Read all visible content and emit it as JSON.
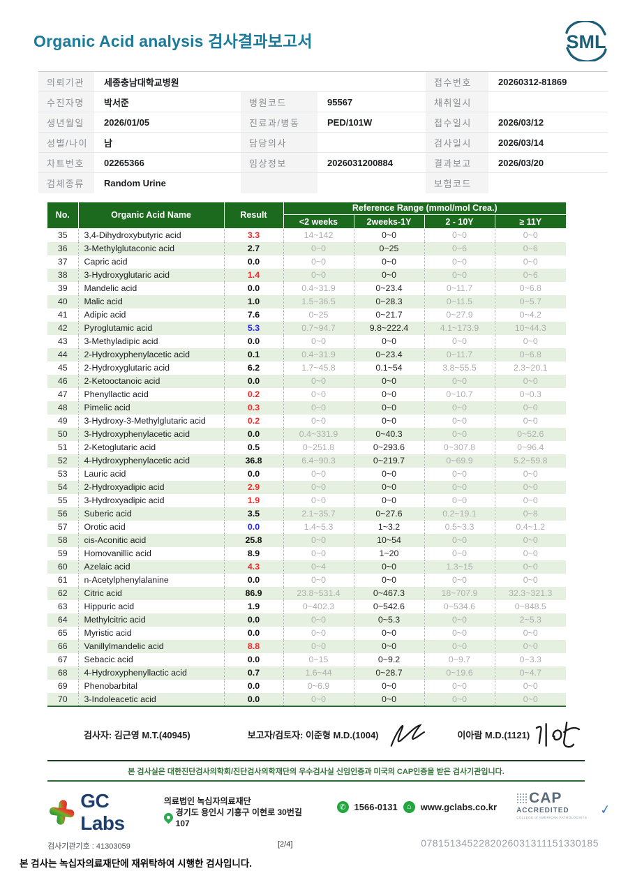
{
  "header": {
    "title": "Organic Acid analysis 검사결과보고서",
    "logo_text": "SML"
  },
  "patient_info": {
    "rows": [
      {
        "cells": [
          {
            "t": "label",
            "text": "의뢰기관",
            "span": 1
          },
          {
            "t": "value",
            "text": "세종충남대학교병원",
            "span": 3
          },
          {
            "t": "label",
            "text": "접수번호",
            "span": 1
          },
          {
            "t": "value",
            "text": "20260312-81869",
            "span": 1
          }
        ]
      },
      {
        "cells": [
          {
            "t": "label",
            "text": "수진자명",
            "span": 1
          },
          {
            "t": "value",
            "text": "박서준",
            "span": 1
          },
          {
            "t": "label",
            "text": "병원코드",
            "span": 1
          },
          {
            "t": "value",
            "text": "95567",
            "span": 1
          },
          {
            "t": "label",
            "text": "채취일시",
            "span": 1
          },
          {
            "t": "value",
            "text": "",
            "span": 1
          }
        ]
      },
      {
        "cells": [
          {
            "t": "label",
            "text": "생년월일",
            "span": 1
          },
          {
            "t": "value",
            "text": "2026/01/05",
            "span": 1
          },
          {
            "t": "label",
            "text": "진료과/병동",
            "span": 1
          },
          {
            "t": "value",
            "text": "PED/101W",
            "span": 1
          },
          {
            "t": "label",
            "text": "접수일시",
            "span": 1
          },
          {
            "t": "value",
            "text": "2026/03/12",
            "span": 1
          }
        ]
      },
      {
        "cells": [
          {
            "t": "label",
            "text": "성별/나이",
            "span": 1
          },
          {
            "t": "value",
            "text": "남",
            "span": 1
          },
          {
            "t": "label",
            "text": "담당의사",
            "span": 1
          },
          {
            "t": "value",
            "text": "",
            "span": 1
          },
          {
            "t": "label",
            "text": "검사일시",
            "span": 1
          },
          {
            "t": "value",
            "text": "2026/03/14",
            "span": 1
          }
        ]
      },
      {
        "cells": [
          {
            "t": "label",
            "text": "차트번호",
            "span": 1
          },
          {
            "t": "value",
            "text": "02265366",
            "span": 1
          },
          {
            "t": "label",
            "text": "임상정보",
            "span": 1
          },
          {
            "t": "value",
            "text": "2026031200884",
            "span": 1
          },
          {
            "t": "label",
            "text": "결과보고",
            "span": 1
          },
          {
            "t": "value",
            "text": "2026/03/20",
            "span": 1
          }
        ]
      },
      {
        "cells": [
          {
            "t": "label",
            "text": "검체종류",
            "span": 1
          },
          {
            "t": "value",
            "text": "Random Urine",
            "span": 1
          },
          {
            "t": "label",
            "text": "",
            "span": 1
          },
          {
            "t": "value",
            "text": "",
            "span": 1
          },
          {
            "t": "label",
            "text": "보험코드",
            "span": 1
          },
          {
            "t": "value",
            "text": "",
            "span": 1
          }
        ]
      }
    ]
  },
  "report_table": {
    "header": {
      "no": "No.",
      "name": "Organic Acid Name",
      "result": "Result",
      "ref_group": "Reference Range (mmol/mol Crea.)",
      "age_cols": [
        "<2 weeks",
        "2weeks-1Y",
        "2 - 10Y",
        "≥ 11Y"
      ],
      "active_age_col": 1
    },
    "rows": [
      {
        "no": "35",
        "name": "3,4-Dihydroxybutyric acid",
        "result": "3.3",
        "flag": "high",
        "refs": [
          "14~142",
          "0~0",
          "0~0",
          "0~0"
        ]
      },
      {
        "no": "36",
        "name": "3-Methylglutaconic acid",
        "result": "2.7",
        "flag": "normal",
        "refs": [
          "0~0",
          "0~25",
          "0~6",
          "0~6"
        ]
      },
      {
        "no": "37",
        "name": "Capric acid",
        "result": "0.0",
        "flag": "normal",
        "refs": [
          "0~0",
          "0~0",
          "0~0",
          "0~0"
        ]
      },
      {
        "no": "38",
        "name": "3-Hydroxyglutaric acid",
        "result": "1.4",
        "flag": "high",
        "refs": [
          "0~0",
          "0~0",
          "0~0",
          "0~6"
        ]
      },
      {
        "no": "39",
        "name": "Mandelic acid",
        "result": "0.0",
        "flag": "normal",
        "refs": [
          "0.4~31.9",
          "0~23.4",
          "0~11.7",
          "0~6.8"
        ]
      },
      {
        "no": "40",
        "name": "Malic acid",
        "result": "1.0",
        "flag": "normal",
        "refs": [
          "1.5~36.5",
          "0~28.3",
          "0~11.5",
          "0~5.7"
        ]
      },
      {
        "no": "41",
        "name": "Adipic acid",
        "result": "7.6",
        "flag": "normal",
        "refs": [
          "0~25",
          "0~21.7",
          "0~27.9",
          "0~4.2"
        ]
      },
      {
        "no": "42",
        "name": "Pyroglutamic acid",
        "result": "5.3",
        "flag": "low",
        "refs": [
          "0.7~94.7",
          "9.8~222.4",
          "4.1~173.9",
          "10~44.3"
        ]
      },
      {
        "no": "43",
        "name": "3-Methyladipic acid",
        "result": "0.0",
        "flag": "normal",
        "refs": [
          "0~0",
          "0~0",
          "0~0",
          "0~0"
        ]
      },
      {
        "no": "44",
        "name": "2-Hydroxyphenylacetic acid",
        "result": "0.1",
        "flag": "normal",
        "refs": [
          "0.4~31.9",
          "0~23.4",
          "0~11.7",
          "0~6.8"
        ]
      },
      {
        "no": "45",
        "name": "2-Hydroxyglutaric acid",
        "result": "6.2",
        "flag": "normal",
        "refs": [
          "1.7~45.8",
          "0.1~54",
          "3.8~55.5",
          "2.3~20.1"
        ]
      },
      {
        "no": "46",
        "name": "2-Ketooctanoic acid",
        "result": "0.0",
        "flag": "normal",
        "refs": [
          "0~0",
          "0~0",
          "0~0",
          "0~0"
        ]
      },
      {
        "no": "47",
        "name": "Phenyllactic acid",
        "result": "0.2",
        "flag": "high",
        "refs": [
          "0~0",
          "0~0",
          "0~10.7",
          "0~0.3"
        ]
      },
      {
        "no": "48",
        "name": "Pimelic acid",
        "result": "0.3",
        "flag": "high",
        "refs": [
          "0~0",
          "0~0",
          "0~0",
          "0~0"
        ]
      },
      {
        "no": "49",
        "name": "3-Hydroxy-3-Methylglutaric acid",
        "result": "0.2",
        "flag": "high",
        "refs": [
          "0~0",
          "0~0",
          "0~0",
          "0~0"
        ]
      },
      {
        "no": "50",
        "name": "3-Hydroxyphenylacetic acid",
        "result": "0.0",
        "flag": "normal",
        "refs": [
          "0.4~331.9",
          "0~40.3",
          "0~0",
          "0~52.6"
        ]
      },
      {
        "no": "51",
        "name": "2-Ketoglutaric acid",
        "result": "0.5",
        "flag": "normal",
        "refs": [
          "0~251.8",
          "0~293.6",
          "0~307.8",
          "0~96.4"
        ]
      },
      {
        "no": "52",
        "name": "4-Hydroxyphenylacetic acid",
        "result": "36.8",
        "flag": "normal",
        "refs": [
          "6.4~90.3",
          "0~219.7",
          "0~69.9",
          "5.2~59.8"
        ]
      },
      {
        "no": "53",
        "name": "Lauric acid",
        "result": "0.0",
        "flag": "normal",
        "refs": [
          "0~0",
          "0~0",
          "0~0",
          "0~0"
        ]
      },
      {
        "no": "54",
        "name": "2-Hydroxyadipic acid",
        "result": "2.9",
        "flag": "high",
        "refs": [
          "0~0",
          "0~0",
          "0~0",
          "0~0"
        ]
      },
      {
        "no": "55",
        "name": "3-Hydroxyadipic acid",
        "result": "1.9",
        "flag": "high",
        "refs": [
          "0~0",
          "0~0",
          "0~0",
          "0~0"
        ]
      },
      {
        "no": "56",
        "name": "Suberic acid",
        "result": "3.5",
        "flag": "normal",
        "refs": [
          "2.1~35.7",
          "0~27.6",
          "0.2~19.1",
          "0~8"
        ]
      },
      {
        "no": "57",
        "name": "Orotic acid",
        "result": "0.0",
        "flag": "low",
        "refs": [
          "1.4~5.3",
          "1~3.2",
          "0.5~3.3",
          "0.4~1.2"
        ]
      },
      {
        "no": "58",
        "name": "cis-Aconitic acid",
        "result": "25.8",
        "flag": "normal",
        "refs": [
          "0~0",
          "10~54",
          "0~0",
          "0~0"
        ]
      },
      {
        "no": "59",
        "name": "Homovanillic acid",
        "result": "8.9",
        "flag": "normal",
        "refs": [
          "0~0",
          "1~20",
          "0~0",
          "0~0"
        ]
      },
      {
        "no": "60",
        "name": "Azelaic acid",
        "result": "4.3",
        "flag": "high",
        "refs": [
          "0~4",
          "0~0",
          "1.3~15",
          "0~0"
        ]
      },
      {
        "no": "61",
        "name": "n-Acetylphenylalanine",
        "result": "0.0",
        "flag": "normal",
        "refs": [
          "0~0",
          "0~0",
          "0~0",
          "0~0"
        ]
      },
      {
        "no": "62",
        "name": "Citric acid",
        "result": "86.9",
        "flag": "normal",
        "refs": [
          "23.8~531.4",
          "0~467.3",
          "18~707.9",
          "32.3~321.3"
        ]
      },
      {
        "no": "63",
        "name": "Hippuric acid",
        "result": "1.9",
        "flag": "normal",
        "refs": [
          "0~402.3",
          "0~542.6",
          "0~534.6",
          "0~848.5"
        ]
      },
      {
        "no": "64",
        "name": "Methylcitric acid",
        "result": "0.0",
        "flag": "normal",
        "refs": [
          "0~0",
          "0~5.3",
          "0~0",
          "2~5.3"
        ]
      },
      {
        "no": "65",
        "name": "Myristic acid",
        "result": "0.0",
        "flag": "normal",
        "refs": [
          "0~0",
          "0~0",
          "0~0",
          "0~0"
        ]
      },
      {
        "no": "66",
        "name": "Vanillylmandelic acid",
        "result": "8.8",
        "flag": "high",
        "refs": [
          "0~0",
          "0~0",
          "0~0",
          "0~0"
        ]
      },
      {
        "no": "67",
        "name": "Sebacic acid",
        "result": "0.0",
        "flag": "normal",
        "refs": [
          "0~15",
          "0~9.2",
          "0~9.7",
          "0~3.3"
        ]
      },
      {
        "no": "68",
        "name": "4-Hydroxyphenyllactic acid",
        "result": "0.7",
        "flag": "normal",
        "refs": [
          "1.6~44",
          "0~28.7",
          "0~19.6",
          "0~4.7"
        ]
      },
      {
        "no": "69",
        "name": "Phenobarbital",
        "result": "0.0",
        "flag": "normal",
        "refs": [
          "0~6.9",
          "0~0",
          "0~0",
          "0~0"
        ]
      },
      {
        "no": "70",
        "name": "3-Indoleacetic acid",
        "result": "0.0",
        "flag": "normal",
        "refs": [
          "0~0",
          "0~0",
          "0~0",
          "0~0"
        ]
      }
    ]
  },
  "signatures": {
    "tester": "검사자: 김근영 M.T.(40945)",
    "reporter": "보고자/검토자: 이준형 M.D.(1004)",
    "approver": "이아람 M.D.(1121)"
  },
  "accreditation": "본 검사실은 대한진단검사의학회/진단검사의학재단의 우수검사실 신임인증과 미국의 CAP인증을 받은 검사기관입니다.",
  "footer": {
    "lab_name": "GC Labs",
    "org_name": "의료법인 녹십자의료재단",
    "address": "경기도 용인시 기흥구 이현로 30번길 107",
    "phone": "1566-0131",
    "website": "www.gclabs.co.kr",
    "org_code": "검사기관기호 : 41303059",
    "page_no": "[2/4]",
    "cap_word": "CAP",
    "cap_accredited": "ACCREDITED",
    "cap_college": "COLLEGE of AMERICAN PATHOLOGISTS",
    "serial": "0781513452282026031311151330185"
  },
  "bottom_note": "본 검사는 녹십자의료재단에 재위탁하여 시행한 검사입니다.",
  "colors": {
    "header_green": "#1b6a1e",
    "row_green": "#e6f0e0",
    "high_red": "#ee2b2c",
    "low_blue": "#2727e8",
    "title_teal": "#1a7a99"
  }
}
